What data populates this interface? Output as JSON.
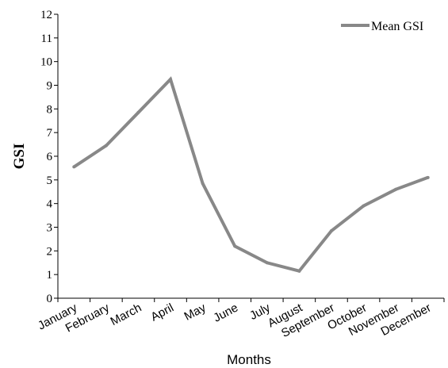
{
  "chart_data": {
    "type": "line",
    "title": "",
    "xlabel": "Months",
    "ylabel": "GSI",
    "ylim": [
      0,
      12
    ],
    "yticks": [
      0,
      1,
      2,
      3,
      4,
      5,
      6,
      7,
      8,
      9,
      10,
      11,
      12
    ],
    "grid": false,
    "legend_position": "top-right",
    "categories": [
      "January",
      "February",
      "March",
      "April",
      "May",
      "June",
      "July",
      "August",
      "September",
      "October",
      "November",
      "December"
    ],
    "series": [
      {
        "name": "Mean GSI",
        "color": "#888888",
        "values": [
          5.55,
          6.45,
          7.85,
          9.25,
          4.85,
          2.2,
          1.5,
          1.15,
          2.85,
          3.9,
          4.6,
          5.1
        ]
      }
    ]
  }
}
